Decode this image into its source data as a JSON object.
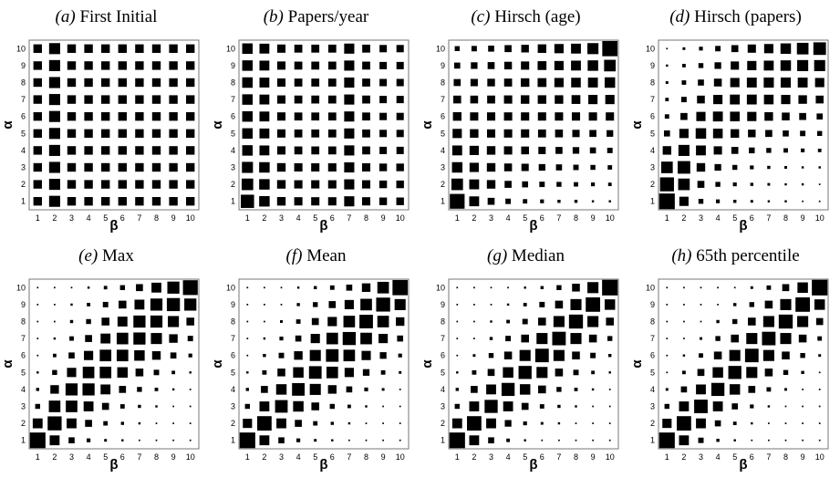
{
  "chart_data": [
    {
      "type": "heatmap",
      "panel_label": "(a)",
      "title": "First Initial",
      "xlabel": "β",
      "ylabel": "α",
      "x_ticks": [
        "1",
        "2",
        "3",
        "4",
        "5",
        "6",
        "7",
        "8",
        "9",
        "10"
      ],
      "y_ticks": [
        "1",
        "2",
        "3",
        "4",
        "5",
        "6",
        "7",
        "8",
        "9",
        "10"
      ],
      "cell_values": [
        [
          0.3,
          0.5,
          0.3,
          0.3,
          0.3,
          0.3,
          0.3,
          0.3,
          0.3,
          0.3
        ],
        [
          0.3,
          0.5,
          0.3,
          0.3,
          0.3,
          0.3,
          0.3,
          0.3,
          0.3,
          0.3
        ],
        [
          0.3,
          0.5,
          0.3,
          0.3,
          0.3,
          0.3,
          0.3,
          0.3,
          0.3,
          0.3
        ],
        [
          0.3,
          0.5,
          0.3,
          0.3,
          0.3,
          0.3,
          0.3,
          0.3,
          0.3,
          0.3
        ],
        [
          0.3,
          0.5,
          0.3,
          0.3,
          0.3,
          0.3,
          0.3,
          0.3,
          0.3,
          0.3
        ],
        [
          0.3,
          0.5,
          0.3,
          0.3,
          0.3,
          0.3,
          0.3,
          0.3,
          0.3,
          0.3
        ],
        [
          0.3,
          0.5,
          0.3,
          0.3,
          0.3,
          0.3,
          0.3,
          0.3,
          0.3,
          0.3
        ],
        [
          0.3,
          0.5,
          0.3,
          0.3,
          0.3,
          0.3,
          0.3,
          0.3,
          0.3,
          0.3
        ],
        [
          0.3,
          0.5,
          0.3,
          0.3,
          0.3,
          0.3,
          0.3,
          0.3,
          0.3,
          0.3
        ],
        [
          0.3,
          0.5,
          0.3,
          0.3,
          0.3,
          0.3,
          0.3,
          0.3,
          0.3,
          0.3
        ]
      ]
    },
    {
      "type": "heatmap",
      "panel_label": "(b)",
      "title": "Papers/year",
      "xlabel": "β",
      "ylabel": "α",
      "x_ticks": [
        "1",
        "2",
        "3",
        "4",
        "5",
        "6",
        "7",
        "8",
        "9",
        "10"
      ],
      "y_ticks": [
        "1",
        "2",
        "3",
        "4",
        "5",
        "6",
        "7",
        "8",
        "9",
        "10"
      ],
      "cell_values": [
        [
          0.72,
          0.45,
          0.3,
          0.28,
          0.28,
          0.28,
          0.42,
          0.28,
          0.24,
          0.24
        ],
        [
          0.55,
          0.45,
          0.3,
          0.28,
          0.28,
          0.28,
          0.42,
          0.28,
          0.24,
          0.24
        ],
        [
          0.5,
          0.45,
          0.3,
          0.28,
          0.28,
          0.28,
          0.42,
          0.28,
          0.24,
          0.24
        ],
        [
          0.45,
          0.4,
          0.28,
          0.26,
          0.26,
          0.26,
          0.42,
          0.26,
          0.22,
          0.22
        ],
        [
          0.45,
          0.4,
          0.28,
          0.26,
          0.26,
          0.26,
          0.42,
          0.26,
          0.22,
          0.22
        ],
        [
          0.45,
          0.4,
          0.28,
          0.26,
          0.26,
          0.26,
          0.42,
          0.26,
          0.22,
          0.22
        ],
        [
          0.45,
          0.4,
          0.28,
          0.26,
          0.26,
          0.26,
          0.42,
          0.26,
          0.22,
          0.22
        ],
        [
          0.45,
          0.4,
          0.28,
          0.26,
          0.26,
          0.26,
          0.42,
          0.26,
          0.22,
          0.22
        ],
        [
          0.45,
          0.4,
          0.28,
          0.26,
          0.26,
          0.26,
          0.42,
          0.26,
          0.22,
          0.22
        ],
        [
          0.45,
          0.4,
          0.28,
          0.26,
          0.26,
          0.26,
          0.42,
          0.26,
          0.22,
          0.22
        ]
      ]
    },
    {
      "type": "heatmap",
      "panel_label": "(c)",
      "title": "Hirsch (age)",
      "xlabel": "β",
      "ylabel": "α",
      "x_ticks": [
        "1",
        "2",
        "3",
        "4",
        "5",
        "6",
        "7",
        "8",
        "9",
        "10"
      ],
      "y_ticks": [
        "1",
        "2",
        "3",
        "4",
        "5",
        "6",
        "7",
        "8",
        "9",
        "10"
      ],
      "cell_values": [
        [
          0.9,
          0.4,
          0.2,
          0.12,
          0.08,
          0.06,
          0.04,
          0.04,
          0.02,
          0.02
        ],
        [
          0.55,
          0.4,
          0.3,
          0.2,
          0.15,
          0.12,
          0.1,
          0.08,
          0.06,
          0.05
        ],
        [
          0.45,
          0.35,
          0.3,
          0.25,
          0.22,
          0.18,
          0.15,
          0.12,
          0.1,
          0.08
        ],
        [
          0.4,
          0.35,
          0.3,
          0.28,
          0.25,
          0.22,
          0.2,
          0.18,
          0.15,
          0.12
        ],
        [
          0.35,
          0.3,
          0.28,
          0.28,
          0.28,
          0.26,
          0.25,
          0.22,
          0.2,
          0.18
        ],
        [
          0.3,
          0.28,
          0.28,
          0.28,
          0.28,
          0.28,
          0.28,
          0.28,
          0.28,
          0.28
        ],
        [
          0.25,
          0.25,
          0.26,
          0.28,
          0.3,
          0.3,
          0.3,
          0.32,
          0.35,
          0.35
        ],
        [
          0.2,
          0.22,
          0.24,
          0.26,
          0.3,
          0.32,
          0.35,
          0.38,
          0.4,
          0.45
        ],
        [
          0.15,
          0.18,
          0.2,
          0.24,
          0.28,
          0.32,
          0.35,
          0.4,
          0.45,
          0.55
        ],
        [
          0.1,
          0.12,
          0.15,
          0.2,
          0.24,
          0.3,
          0.35,
          0.4,
          0.5,
          0.95
        ]
      ]
    },
    {
      "type": "heatmap",
      "panel_label": "(d)",
      "title": "Hirsch (papers)",
      "xlabel": "β",
      "ylabel": "α",
      "x_ticks": [
        "1",
        "2",
        "3",
        "4",
        "5",
        "6",
        "7",
        "8",
        "9",
        "10"
      ],
      "y_ticks": [
        "1",
        "2",
        "3",
        "4",
        "5",
        "6",
        "7",
        "8",
        "9",
        "10"
      ],
      "cell_values": [
        [
          1.0,
          0.35,
          0.1,
          0.06,
          0.04,
          0.03,
          0.02,
          0.02,
          0.01,
          0.01
        ],
        [
          0.8,
          0.55,
          0.2,
          0.1,
          0.06,
          0.04,
          0.03,
          0.02,
          0.02,
          0.01
        ],
        [
          0.55,
          0.65,
          0.3,
          0.18,
          0.1,
          0.06,
          0.04,
          0.03,
          0.02,
          0.02
        ],
        [
          0.3,
          0.5,
          0.4,
          0.28,
          0.2,
          0.14,
          0.1,
          0.08,
          0.06,
          0.05
        ],
        [
          0.15,
          0.35,
          0.45,
          0.38,
          0.3,
          0.24,
          0.2,
          0.15,
          0.12,
          0.1
        ],
        [
          0.08,
          0.2,
          0.35,
          0.4,
          0.38,
          0.35,
          0.3,
          0.25,
          0.2,
          0.15
        ],
        [
          0.05,
          0.12,
          0.25,
          0.35,
          0.4,
          0.4,
          0.38,
          0.35,
          0.3,
          0.25
        ],
        [
          0.03,
          0.08,
          0.15,
          0.25,
          0.35,
          0.4,
          0.42,
          0.42,
          0.4,
          0.35
        ],
        [
          0.02,
          0.05,
          0.1,
          0.18,
          0.28,
          0.35,
          0.4,
          0.45,
          0.5,
          0.5
        ],
        [
          0.01,
          0.03,
          0.06,
          0.12,
          0.2,
          0.28,
          0.35,
          0.45,
          0.55,
          0.65
        ]
      ]
    },
    {
      "type": "heatmap",
      "panel_label": "(e)",
      "title": "Max",
      "xlabel": "β",
      "ylabel": "α",
      "x_ticks": [
        "1",
        "2",
        "3",
        "4",
        "5",
        "6",
        "7",
        "8",
        "9",
        "10"
      ],
      "y_ticks": [
        "1",
        "2",
        "3",
        "4",
        "5",
        "6",
        "7",
        "8",
        "9",
        "10"
      ],
      "cell_values": [
        [
          1.0,
          0.4,
          0.15,
          0.06,
          0.03,
          0.02,
          0.01,
          0.01,
          0.01,
          0.01
        ],
        [
          0.4,
          0.8,
          0.4,
          0.2,
          0.08,
          0.04,
          0.02,
          0.01,
          0.01,
          0.01
        ],
        [
          0.1,
          0.55,
          0.55,
          0.4,
          0.2,
          0.08,
          0.04,
          0.02,
          0.01,
          0.01
        ],
        [
          0.04,
          0.3,
          0.6,
          0.6,
          0.4,
          0.2,
          0.1,
          0.05,
          0.02,
          0.01
        ],
        [
          0.02,
          0.1,
          0.35,
          0.55,
          0.55,
          0.45,
          0.25,
          0.12,
          0.05,
          0.02
        ],
        [
          0.01,
          0.05,
          0.15,
          0.35,
          0.55,
          0.55,
          0.45,
          0.3,
          0.15,
          0.06
        ],
        [
          0.01,
          0.02,
          0.08,
          0.2,
          0.4,
          0.55,
          0.6,
          0.5,
          0.3,
          0.12
        ],
        [
          0.01,
          0.01,
          0.04,
          0.1,
          0.25,
          0.4,
          0.6,
          0.6,
          0.5,
          0.25
        ],
        [
          0.01,
          0.01,
          0.02,
          0.05,
          0.12,
          0.25,
          0.4,
          0.6,
          0.7,
          0.6
        ],
        [
          0.01,
          0.01,
          0.01,
          0.02,
          0.05,
          0.1,
          0.2,
          0.4,
          0.6,
          0.9
        ]
      ]
    },
    {
      "type": "heatmap",
      "panel_label": "(f)",
      "title": "Mean",
      "xlabel": "β",
      "ylabel": "α",
      "x_ticks": [
        "1",
        "2",
        "3",
        "4",
        "5",
        "6",
        "7",
        "8",
        "9",
        "10"
      ],
      "y_ticks": [
        "1",
        "2",
        "3",
        "4",
        "5",
        "6",
        "7",
        "8",
        "9",
        "10"
      ],
      "cell_values": [
        [
          1.0,
          0.4,
          0.15,
          0.06,
          0.03,
          0.02,
          0.01,
          0.01,
          0.01,
          0.01
        ],
        [
          0.35,
          0.85,
          0.4,
          0.2,
          0.08,
          0.04,
          0.02,
          0.01,
          0.01,
          0.01
        ],
        [
          0.1,
          0.4,
          0.65,
          0.45,
          0.25,
          0.1,
          0.05,
          0.02,
          0.01,
          0.01
        ],
        [
          0.04,
          0.2,
          0.45,
          0.65,
          0.5,
          0.3,
          0.15,
          0.06,
          0.03,
          0.01
        ],
        [
          0.02,
          0.08,
          0.25,
          0.45,
          0.65,
          0.55,
          0.35,
          0.18,
          0.08,
          0.03
        ],
        [
          0.01,
          0.04,
          0.12,
          0.3,
          0.5,
          0.65,
          0.55,
          0.35,
          0.18,
          0.06
        ],
        [
          0.01,
          0.02,
          0.06,
          0.15,
          0.35,
          0.55,
          0.7,
          0.55,
          0.35,
          0.15
        ],
        [
          0.01,
          0.01,
          0.03,
          0.08,
          0.2,
          0.35,
          0.55,
          0.75,
          0.55,
          0.3
        ],
        [
          0.01,
          0.01,
          0.01,
          0.04,
          0.1,
          0.2,
          0.35,
          0.55,
          0.8,
          0.5
        ],
        [
          0.01,
          0.01,
          0.01,
          0.02,
          0.04,
          0.08,
          0.15,
          0.3,
          0.55,
          0.95
        ]
      ]
    },
    {
      "type": "heatmap",
      "panel_label": "(g)",
      "title": "Median",
      "xlabel": "β",
      "ylabel": "α",
      "x_ticks": [
        "1",
        "2",
        "3",
        "4",
        "5",
        "6",
        "7",
        "8",
        "9",
        "10"
      ],
      "y_ticks": [
        "1",
        "2",
        "3",
        "4",
        "5",
        "6",
        "7",
        "8",
        "9",
        "10"
      ],
      "cell_values": [
        [
          1.0,
          0.4,
          0.15,
          0.05,
          0.02,
          0.01,
          0.01,
          0.01,
          0.01,
          0.01
        ],
        [
          0.4,
          0.85,
          0.4,
          0.18,
          0.06,
          0.03,
          0.02,
          0.01,
          0.01,
          0.01
        ],
        [
          0.1,
          0.4,
          0.7,
          0.4,
          0.2,
          0.08,
          0.04,
          0.02,
          0.01,
          0.01
        ],
        [
          0.04,
          0.2,
          0.4,
          0.7,
          0.45,
          0.25,
          0.1,
          0.05,
          0.02,
          0.01
        ],
        [
          0.02,
          0.08,
          0.2,
          0.45,
          0.7,
          0.5,
          0.25,
          0.12,
          0.05,
          0.02
        ],
        [
          0.01,
          0.03,
          0.1,
          0.25,
          0.5,
          0.75,
          0.5,
          0.25,
          0.12,
          0.04
        ],
        [
          0.01,
          0.01,
          0.04,
          0.12,
          0.25,
          0.5,
          0.75,
          0.5,
          0.25,
          0.1
        ],
        [
          0.01,
          0.01,
          0.02,
          0.05,
          0.12,
          0.25,
          0.5,
          0.8,
          0.5,
          0.25
        ],
        [
          0.01,
          0.01,
          0.01,
          0.02,
          0.05,
          0.12,
          0.25,
          0.5,
          0.85,
          0.45
        ],
        [
          0.01,
          0.01,
          0.01,
          0.01,
          0.02,
          0.04,
          0.1,
          0.25,
          0.5,
          1.0
        ]
      ]
    },
    {
      "type": "heatmap",
      "panel_label": "(h)",
      "title": "65th percentile",
      "xlabel": "β",
      "ylabel": "α",
      "x_ticks": [
        "1",
        "2",
        "3",
        "4",
        "5",
        "6",
        "7",
        "8",
        "9",
        "10"
      ],
      "y_ticks": [
        "1",
        "2",
        "3",
        "4",
        "5",
        "6",
        "7",
        "8",
        "9",
        "10"
      ],
      "cell_values": [
        [
          1.0,
          0.4,
          0.12,
          0.04,
          0.02,
          0.01,
          0.01,
          0.01,
          0.01,
          0.01
        ],
        [
          0.35,
          0.85,
          0.4,
          0.15,
          0.05,
          0.02,
          0.01,
          0.01,
          0.01,
          0.01
        ],
        [
          0.1,
          0.4,
          0.75,
          0.4,
          0.15,
          0.06,
          0.02,
          0.01,
          0.01,
          0.01
        ],
        [
          0.03,
          0.15,
          0.4,
          0.7,
          0.45,
          0.2,
          0.08,
          0.03,
          0.01,
          0.01
        ],
        [
          0.01,
          0.05,
          0.2,
          0.45,
          0.7,
          0.5,
          0.25,
          0.1,
          0.04,
          0.01
        ],
        [
          0.01,
          0.02,
          0.08,
          0.25,
          0.5,
          0.75,
          0.5,
          0.25,
          0.1,
          0.03
        ],
        [
          0.01,
          0.01,
          0.03,
          0.1,
          0.25,
          0.5,
          0.75,
          0.5,
          0.25,
          0.08
        ],
        [
          0.01,
          0.01,
          0.01,
          0.04,
          0.1,
          0.25,
          0.5,
          0.8,
          0.5,
          0.2
        ],
        [
          0.01,
          0.01,
          0.01,
          0.01,
          0.04,
          0.1,
          0.25,
          0.5,
          0.85,
          0.45
        ],
        [
          0.01,
          0.01,
          0.01,
          0.01,
          0.01,
          0.03,
          0.08,
          0.2,
          0.45,
          1.0
        ]
      ]
    }
  ]
}
